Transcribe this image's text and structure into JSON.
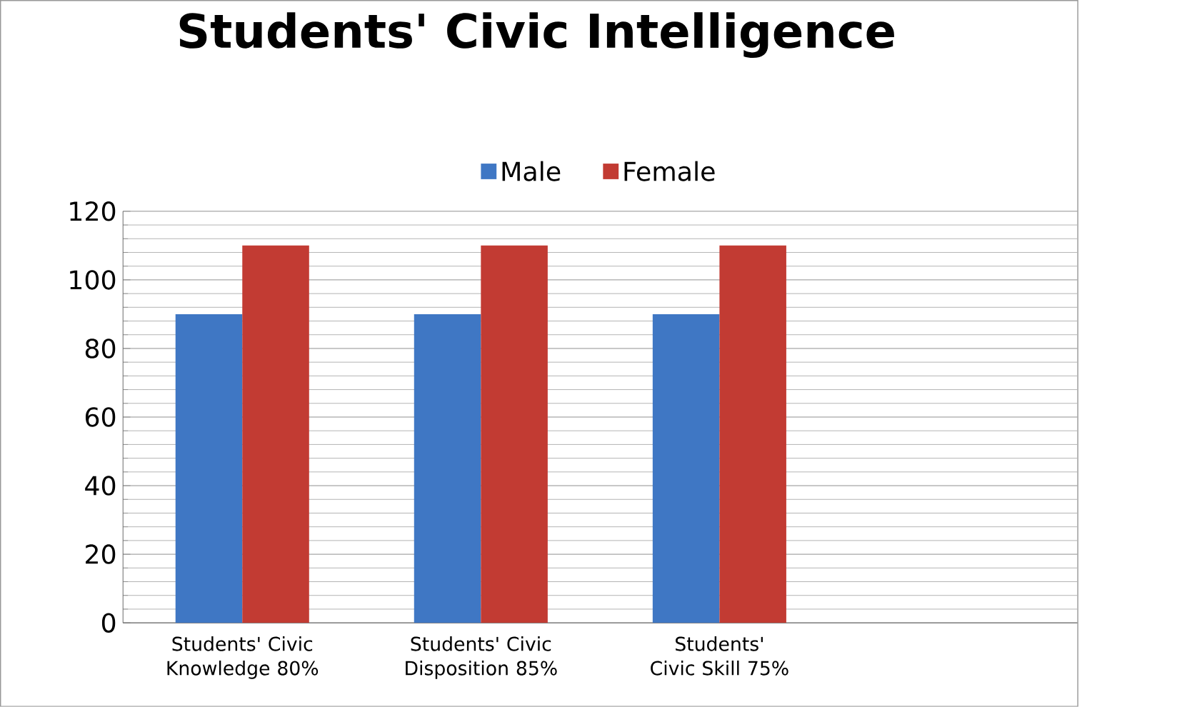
{
  "chart_data": {
    "type": "bar",
    "title": "Students' Civic Intelligence",
    "categories": [
      "Students' Civic Knowledge 80%",
      "Students' Civic Disposition 85%",
      "Students' Civic Skill 75%",
      null
    ],
    "series": [
      {
        "name": "Male",
        "color": "#3f77c4",
        "values": [
          90,
          90,
          90,
          null
        ]
      },
      {
        "name": "Female",
        "color": "#c23b33",
        "values": [
          110,
          110,
          110,
          null
        ]
      }
    ],
    "ylim": [
      0,
      120
    ],
    "yticks": [
      0,
      20,
      40,
      60,
      80,
      100,
      120
    ],
    "grid": "y",
    "legend": "top"
  }
}
